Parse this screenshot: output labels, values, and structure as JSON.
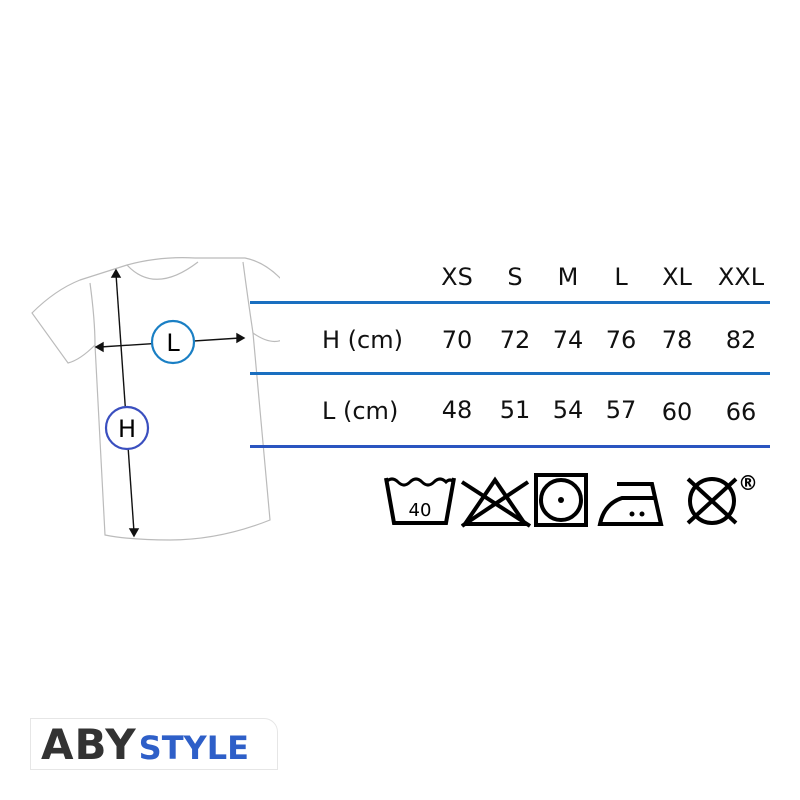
{
  "diagram": {
    "width_marker": "L",
    "height_marker": "H",
    "marker_colors": {
      "L": "#1a7fc4",
      "H": "#3a4fbf"
    }
  },
  "size_table": {
    "sizes": [
      "XS",
      "S",
      "M",
      "L",
      "XL",
      "XXL"
    ],
    "rows": [
      {
        "label": "H (cm)",
        "values": [
          "70",
          "72",
          "74",
          "76",
          "78",
          "82"
        ]
      },
      {
        "label": "L (cm)",
        "values": [
          "48",
          "51",
          "54",
          "57",
          "60",
          "66"
        ]
      }
    ],
    "line_color": "#1a6fc0"
  },
  "care": {
    "icons": [
      "wash-40-icon",
      "no-bleach-icon",
      "tumble-dry-low-icon",
      "iron-medium-icon",
      "no-dry-clean-icon"
    ],
    "wash_temp": "40",
    "registered_mark": "®"
  },
  "logo": {
    "part1": "ABY",
    "part2": "STYLE",
    "colors": {
      "part1": "#333333",
      "part2": "#2e5fc8"
    }
  }
}
